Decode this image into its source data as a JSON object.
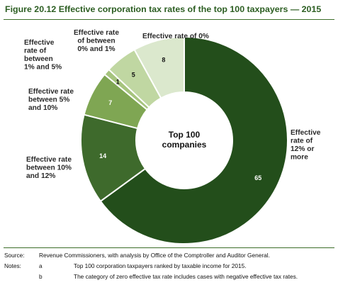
{
  "figure_title": "Figure 20.12  Effective corporation tax rates of the top 100 taxpayers — 2015",
  "chart_data": {
    "type": "pie",
    "center_label": [
      "Top 100",
      "companies"
    ],
    "slices": [
      {
        "category": [
          "Effective",
          "rate of",
          "12% or",
          "more"
        ],
        "value": 65,
        "color": "#234e1b"
      },
      {
        "category": [
          "Effective rate",
          "between 10%",
          "and 12%"
        ],
        "value": 14,
        "color": "#3e6a2c"
      },
      {
        "category": [
          "Effective rate",
          "between 5%",
          "and 10%"
        ],
        "value": 7,
        "color": "#7fa653"
      },
      {
        "category": [
          "Effective",
          "rate of",
          "between",
          "1% and 5%"
        ],
        "value": 1,
        "color": "#a6c47e"
      },
      {
        "category": [
          "Effective rate",
          "of between",
          "0% and 1%"
        ],
        "value": 5,
        "color": "#c0d7a2"
      },
      {
        "category": [
          "Effective rate of 0%"
        ],
        "value": 8,
        "color": "#dbe8cd"
      }
    ]
  },
  "notes": {
    "source_label": "Source:",
    "source_text": "Revenue Commissioners, with analysis by Office of the Comptroller and Auditor General.",
    "notes_label": "Notes:",
    "items": [
      {
        "marker": "a",
        "text": "Top 100 corporation taxpayers ranked by taxable income for 2015."
      },
      {
        "marker": "b",
        "text": "The category of zero effective tax rate includes cases with negative effective tax rates."
      }
    ]
  }
}
